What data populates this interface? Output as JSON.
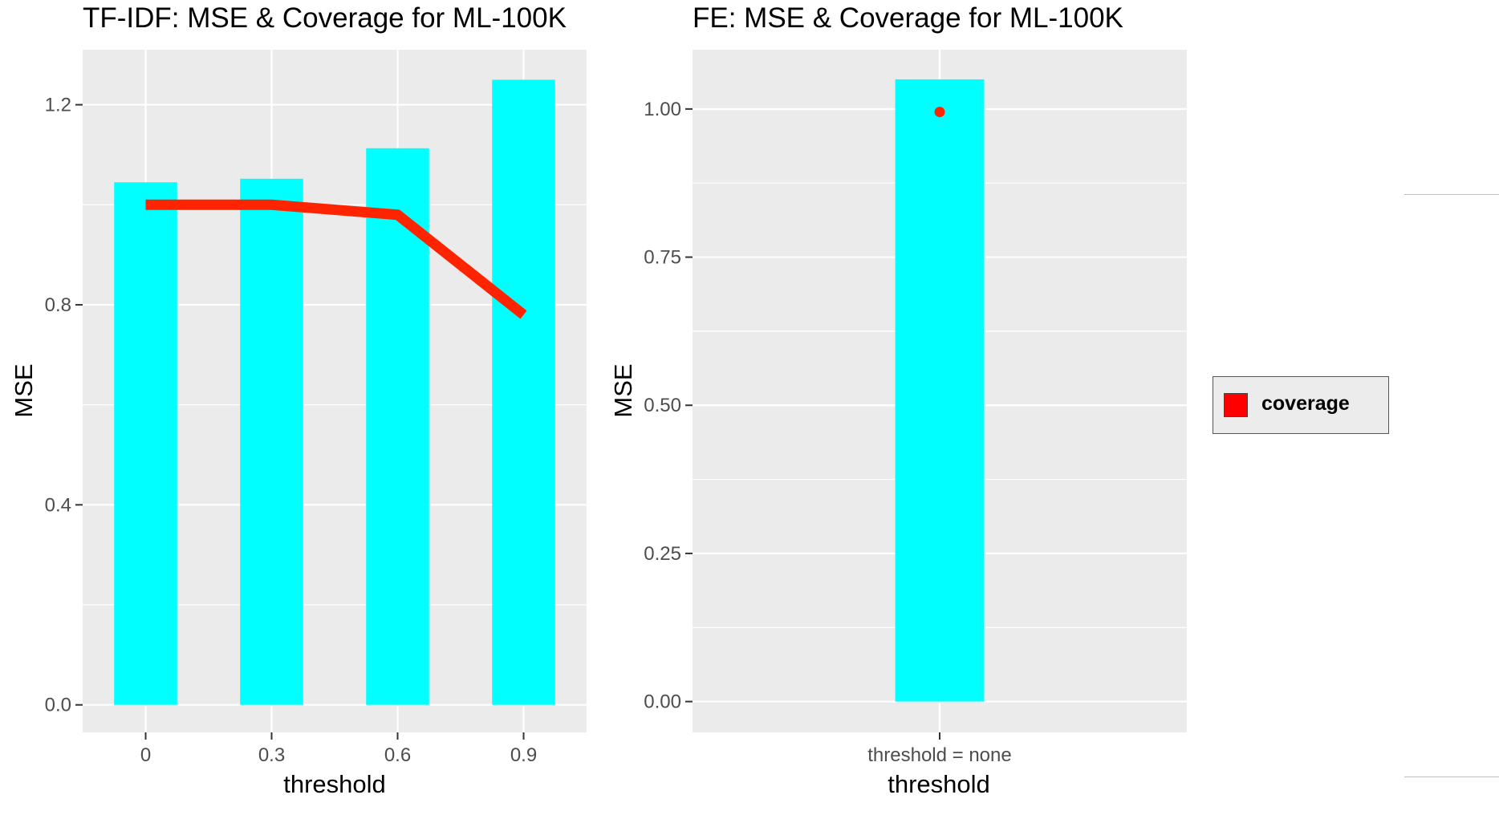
{
  "colors": {
    "bar": "#00FFFF",
    "line": "#FF2400",
    "panel": "#EBEBEB",
    "grid": "#FFFFFF"
  },
  "legend": {
    "label": "coverage",
    "color": "#FF0000"
  },
  "chart_data": [
    {
      "type": "bar",
      "title": "TF-IDF: MSE & Coverage for ML-100K",
      "xlabel": "threshold",
      "ylabel": "MSE",
      "categories": [
        "0",
        "0.3",
        "0.6",
        "0.9"
      ],
      "yticks": [
        "0.0",
        "0.4",
        "0.8",
        "1.2"
      ],
      "ylim": [
        -0.055,
        1.31
      ],
      "series": [
        {
          "type": "bar",
          "values": [
            1.045,
            1.052,
            1.113,
            1.25
          ]
        },
        {
          "name": "coverage",
          "type": "line",
          "values": [
            1.0,
            1.0,
            0.98,
            0.78
          ]
        }
      ],
      "grid": true
    },
    {
      "type": "bar",
      "title": "FE: MSE & Coverage for ML-100K",
      "xlabel": "threshold",
      "ylabel": "MSE",
      "categories": [
        "threshold = none"
      ],
      "yticks": [
        "0.00",
        "0.25",
        "0.50",
        "0.75",
        "1.00"
      ],
      "ylim": [
        -0.052,
        1.1
      ],
      "series": [
        {
          "type": "bar",
          "values": [
            1.05
          ]
        },
        {
          "name": "coverage",
          "type": "point",
          "values": [
            0.995
          ]
        }
      ],
      "grid": true
    }
  ]
}
